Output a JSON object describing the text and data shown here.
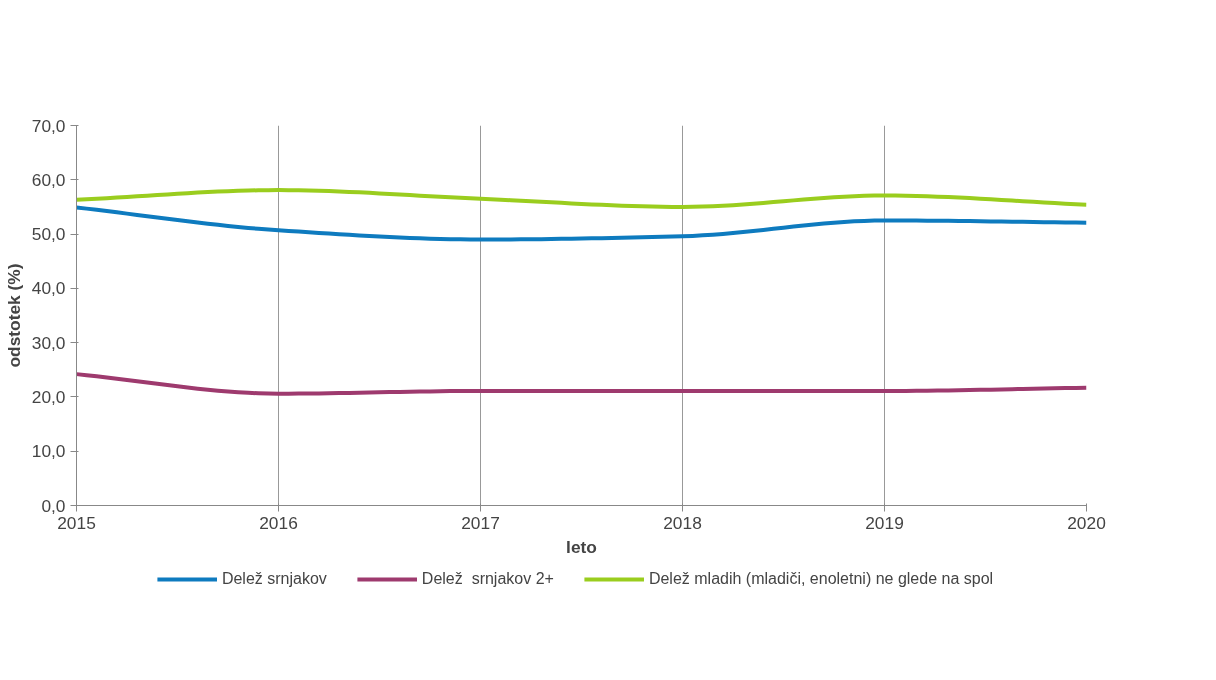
{
  "chart_data": {
    "type": "line",
    "xlabel": "leto",
    "ylabel": "odstotek (%)",
    "x": [
      2015,
      2016,
      2017,
      2018,
      2019,
      2020
    ],
    "series": [
      {
        "name": "Delež srnjakov",
        "color": "#0e7bbf",
        "values": [
          54.9,
          50.7,
          49.0,
          49.6,
          52.5,
          52.1
        ]
      },
      {
        "name": "Delež  srnjakov 2+",
        "color": "#9e3a6e",
        "values": [
          24.2,
          20.6,
          21.1,
          21.1,
          21.1,
          21.7
        ]
      },
      {
        "name": "Delež mladih (mladiči, enoletni) ne glede na spol",
        "color": "#9acd1e",
        "values": [
          56.3,
          58.1,
          56.5,
          55.0,
          57.1,
          55.4
        ]
      }
    ],
    "xlim": [
      2015,
      2020
    ],
    "xticks": [
      2015,
      2016,
      2017,
      2018,
      2019,
      2020
    ],
    "ylim": [
      0,
      70
    ],
    "yticks": [
      {
        "value": 0,
        "label": "0,0"
      },
      {
        "value": 10,
        "label": "10,0"
      },
      {
        "value": 20,
        "label": "20,0"
      },
      {
        "value": 30,
        "label": "30,0"
      },
      {
        "value": 40,
        "label": "40,0"
      },
      {
        "value": 50,
        "label": "50,0"
      },
      {
        "value": 60,
        "label": "60,0"
      },
      {
        "value": 70,
        "label": "70,0"
      }
    ],
    "grid": "x",
    "legend": "bottom",
    "marker": "none",
    "line_style": "solid"
  }
}
